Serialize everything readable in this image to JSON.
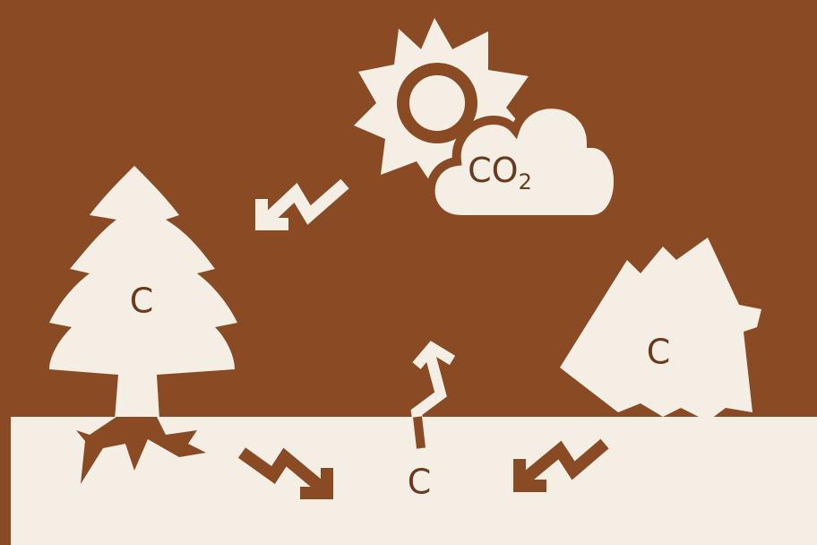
{
  "labels": {
    "tree": "C",
    "cloud": "CO",
    "cloud_subscript": "2",
    "fallen_trees": "C",
    "soil": "C"
  }
}
